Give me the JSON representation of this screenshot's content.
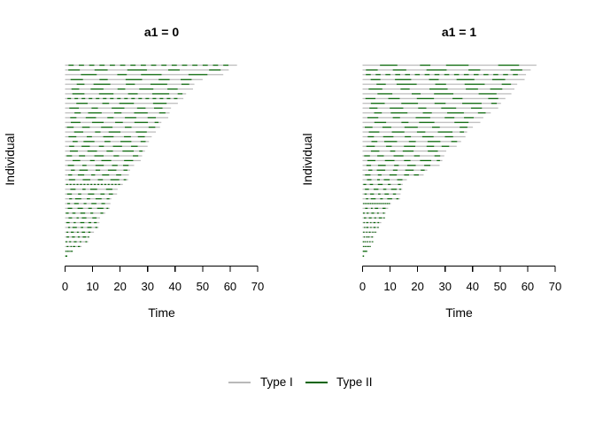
{
  "figure": {
    "background": "#ffffff",
    "text_color": "#000000"
  },
  "legend": {
    "items": [
      {
        "label": "Type I",
        "color": "#b9b9b9"
      },
      {
        "label": "Type II",
        "color": "#006400"
      }
    ]
  },
  "chart_data": {
    "type": "event-history-segments",
    "description": "Two-panel recurrent event plot; one horizontal follow-up line per individual, sorted by decreasing follow-up time. Gray = Type I follow-up line, dark green = Type II event segments.",
    "xlabel": "Time",
    "ylabel": "Individual",
    "xlim": [
      0,
      70
    ],
    "xticks": [
      0,
      10,
      20,
      30,
      40,
      50,
      60,
      70
    ],
    "grid": false,
    "legend_position": "bottom-center",
    "series_colors": {
      "Type I": "#b9b9b9",
      "Type II": "#006400"
    },
    "segment_patterns": [
      [
        [
          0.06,
          0.16
        ],
        [
          0.28,
          0.4
        ],
        [
          0.52,
          0.6
        ],
        [
          0.72,
          0.86
        ],
        [
          0.93,
          0.97
        ]
      ],
      [
        [
          0.02,
          0.09
        ],
        [
          0.18,
          0.26
        ],
        [
          0.38,
          0.5
        ],
        [
          0.63,
          0.7
        ],
        [
          0.88,
          0.95
        ]
      ],
      [
        [
          0.1,
          0.2
        ],
        [
          0.33,
          0.39
        ],
        [
          0.48,
          0.61
        ],
        [
          0.78,
          0.9
        ]
      ],
      [
        [
          0.04,
          0.13
        ],
        [
          0.25,
          0.31
        ],
        [
          0.44,
          0.56
        ],
        [
          0.68,
          0.76
        ],
        [
          0.84,
          0.92
        ]
      ],
      [
        [
          0.09,
          0.15
        ],
        [
          0.22,
          0.35
        ],
        [
          0.47,
          0.54
        ],
        [
          0.66,
          0.79
        ],
        [
          0.9,
          0.96
        ]
      ],
      [
        [
          0.05,
          0.11
        ],
        [
          0.2,
          0.3
        ],
        [
          0.41,
          0.47
        ],
        [
          0.58,
          0.69
        ],
        [
          0.8,
          0.88
        ]
      ],
      [
        [
          0.02,
          0.05
        ],
        [
          0.08,
          0.11
        ],
        [
          0.14,
          0.17
        ],
        [
          0.2,
          0.23
        ],
        [
          0.26,
          0.29
        ],
        [
          0.32,
          0.35
        ],
        [
          0.38,
          0.41
        ],
        [
          0.44,
          0.47
        ],
        [
          0.5,
          0.53
        ],
        [
          0.56,
          0.59
        ],
        [
          0.62,
          0.65
        ],
        [
          0.68,
          0.71
        ],
        [
          0.74,
          0.77
        ],
        [
          0.8,
          0.83
        ],
        [
          0.86,
          0.89
        ],
        [
          0.92,
          0.95
        ]
      ]
    ],
    "panels": [
      {
        "title": "a1 = 0",
        "individuals": [
          [
            62.5,
            6
          ],
          [
            59.5,
            1
          ],
          [
            57.5,
            2
          ],
          [
            50,
            3
          ],
          [
            47,
            4
          ],
          [
            46.5,
            5
          ],
          [
            44,
            0
          ],
          [
            43,
            6
          ],
          [
            41,
            2
          ],
          [
            38.5,
            3
          ],
          [
            38,
            4
          ],
          [
            37.5,
            5
          ],
          [
            35,
            0
          ],
          [
            34.5,
            1
          ],
          [
            33,
            2
          ],
          [
            31.5,
            3
          ],
          [
            30.5,
            4
          ],
          [
            30,
            5
          ],
          [
            29,
            0
          ],
          [
            28,
            1
          ],
          [
            27.5,
            2
          ],
          [
            25.1,
            3
          ],
          [
            23.6,
            4
          ],
          [
            23.2,
            5
          ],
          [
            22.9,
            0
          ],
          [
            21,
            6
          ],
          [
            19.1,
            2
          ],
          [
            18.9,
            3
          ],
          [
            16.8,
            4
          ],
          [
            16.5,
            5
          ],
          [
            16.2,
            0
          ],
          [
            14.6,
            1
          ],
          [
            12.7,
            2
          ],
          [
            12.5,
            3
          ],
          [
            12.2,
            4
          ],
          [
            10.5,
            5
          ],
          [
            8.9,
            0
          ],
          [
            8.4,
            1
          ],
          [
            6,
            2
          ],
          [
            2.8,
            3
          ],
          [
            0.8,
            4
          ]
        ]
      },
      {
        "title": "a1 = 1",
        "individuals": [
          [
            63.2,
            2
          ],
          [
            61.1,
            1
          ],
          [
            59.4,
            6
          ],
          [
            58.9,
            5
          ],
          [
            56.2,
            4
          ],
          [
            55.2,
            3
          ],
          [
            54.1,
            2
          ],
          [
            51.9,
            1
          ],
          [
            50.3,
            0
          ],
          [
            49.3,
            5
          ],
          [
            46.6,
            4
          ],
          [
            43.9,
            3
          ],
          [
            42.8,
            2
          ],
          [
            40.1,
            1
          ],
          [
            38,
            0
          ],
          [
            37.4,
            5
          ],
          [
            35.8,
            4
          ],
          [
            34.2,
            3
          ],
          [
            30.4,
            2
          ],
          [
            29.7,
            1
          ],
          [
            29,
            0
          ],
          [
            28,
            5
          ],
          [
            23.5,
            4
          ],
          [
            22.2,
            3
          ],
          [
            16.1,
            2
          ],
          [
            14.6,
            1
          ],
          [
            14.4,
            0
          ],
          [
            13.8,
            5
          ],
          [
            13.6,
            4
          ],
          [
            10.3,
            6
          ],
          [
            9.3,
            2
          ],
          [
            8.4,
            1
          ],
          [
            8.2,
            0
          ],
          [
            6.8,
            5
          ],
          [
            6,
            4
          ],
          [
            5.2,
            3
          ],
          [
            4.1,
            2
          ],
          [
            3.9,
            1
          ],
          [
            3,
            0
          ],
          [
            1.7,
            5
          ],
          [
            0.5,
            4
          ]
        ]
      }
    ]
  }
}
